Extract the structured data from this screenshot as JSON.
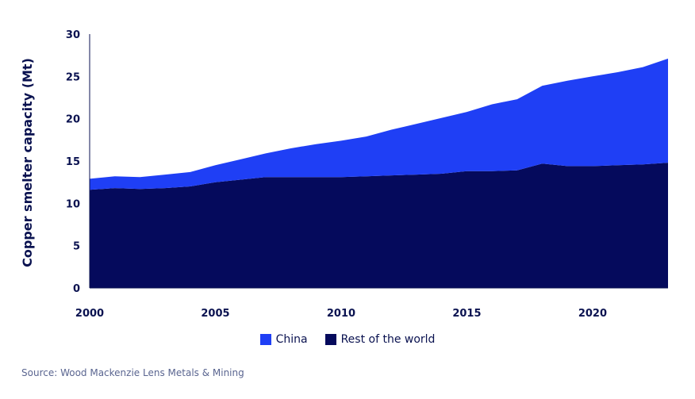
{
  "chart_data": {
    "type": "area",
    "stacked": true,
    "ylabel": "Copper smelter capacity (Mt)",
    "xlabel": "",
    "xlim": [
      2000,
      2023
    ],
    "ylim": [
      0,
      30
    ],
    "x_ticks": [
      "2000",
      "2005",
      "2010",
      "2015",
      "2020"
    ],
    "y_ticks": [
      "0",
      "5",
      "10",
      "15",
      "20",
      "25",
      "30"
    ],
    "x": [
      2000,
      2001,
      2002,
      2003,
      2004,
      2005,
      2006,
      2007,
      2008,
      2009,
      2010,
      2011,
      2012,
      2013,
      2014,
      2015,
      2016,
      2017,
      2018,
      2019,
      2020,
      2021,
      2022,
      2023
    ],
    "series": [
      {
        "name": "Rest of the world",
        "color": "#050a5c",
        "values": [
          11.6,
          11.8,
          11.7,
          11.8,
          12.0,
          12.5,
          12.8,
          13.1,
          13.1,
          13.1,
          13.1,
          13.2,
          13.3,
          13.4,
          13.5,
          13.8,
          13.8,
          13.9,
          14.7,
          14.4,
          14.4,
          14.5,
          14.6,
          14.8
        ]
      },
      {
        "name": "China",
        "color": "#1f3ff5",
        "values": [
          1.3,
          1.4,
          1.4,
          1.6,
          1.7,
          2.0,
          2.4,
          2.8,
          3.4,
          3.9,
          4.3,
          4.7,
          5.4,
          6.0,
          6.6,
          7.0,
          7.9,
          8.4,
          9.2,
          10.1,
          10.6,
          11.0,
          11.5,
          12.3
        ]
      }
    ],
    "legend": {
      "position": "bottom-center",
      "entries": [
        "China",
        "Rest of the world"
      ]
    },
    "grid": false
  },
  "source": "Source: Wood Mackenzie Lens Metals & Mining"
}
